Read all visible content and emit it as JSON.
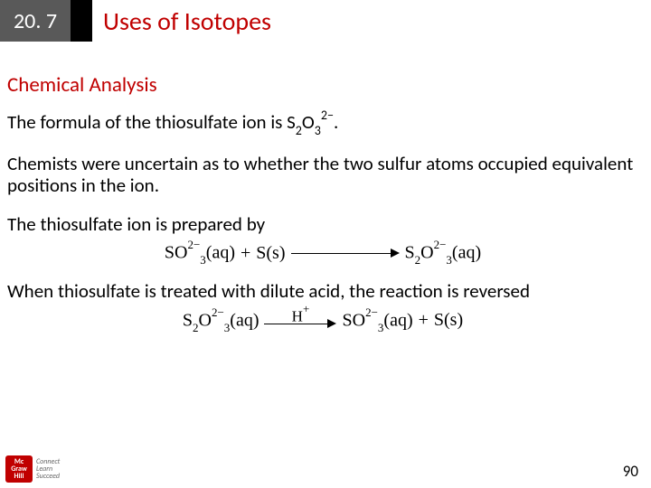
{
  "header": {
    "section_number": "20. 7",
    "title": "Uses of Isotopes",
    "number_bg": "#595959",
    "spacer_bg": "#000000",
    "title_color": "#c00000"
  },
  "subheading": {
    "text": "Chemical Analysis",
    "color": "#c00000",
    "fontsize": 23
  },
  "paragraphs": {
    "p1_pre": "The formula of the thiosulfate ion is S",
    "p1_sub1": "2",
    "p1_mid": "O",
    "p1_sub2": "3",
    "p1_sup": "2−",
    "p1_post": ".",
    "p2": "Chemists were uncertain as to whether the two sulfur atoms occupied equivalent positions in the ion.",
    "p3": "The thiosulfate ion is prepared by",
    "p4": "When thiosulfate is treated with dilute acid, the reaction is reversed"
  },
  "equation1": {
    "lhs1": "SO",
    "lhs1_sup": "2−",
    "lhs1_sub": "3",
    "lhs1_state": "(aq)",
    "plus": " + ",
    "lhs2": "S",
    "lhs2_state": "(s)",
    "rhs": "S",
    "rhs_sub1": "2",
    "rhs_mid": "O",
    "rhs_sup": "2−",
    "rhs_sub2": "3",
    "rhs_state": "(aq)"
  },
  "equation2": {
    "lhs": "S",
    "lhs_sub1": "2",
    "lhs_mid": "O",
    "lhs_sup": "2−",
    "lhs_sub2": "3",
    "lhs_state": "(aq)",
    "arrow_label_pre": "H",
    "arrow_label_sup": "+",
    "rhs1": "SO",
    "rhs1_sup": "2−",
    "rhs1_sub": "3",
    "rhs1_state": "(aq)",
    "plus": " + ",
    "rhs2": "S",
    "rhs2_state": "(s)"
  },
  "footer": {
    "logo_line1": "Mc",
    "logo_line2": "Graw",
    "logo_line3": "Hill",
    "tagline1": "Connect",
    "tagline2": "Learn",
    "tagline3": "Succeed",
    "page": "90"
  },
  "body_fontsize": 21,
  "eq_fontsize": 20,
  "background": "#ffffff"
}
